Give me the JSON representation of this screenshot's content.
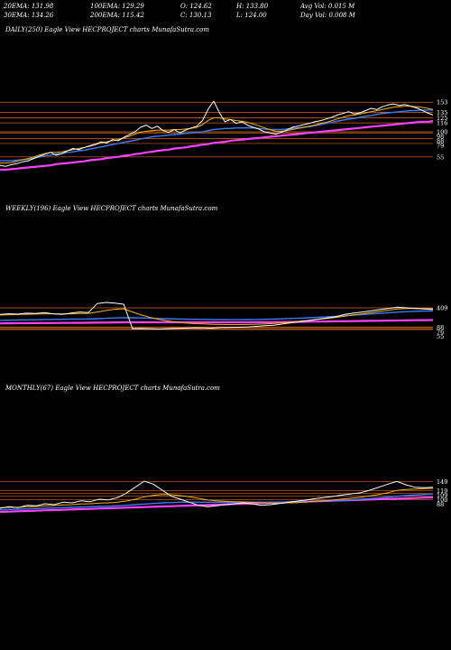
{
  "header": {
    "row1": [
      {
        "label": "20EMA:",
        "value": "131.98"
      },
      {
        "label": "100EMA:",
        "value": "129.29"
      },
      {
        "label": "O:",
        "value": "124.62"
      },
      {
        "label": "H:",
        "value": "133.80"
      },
      {
        "label": "Avg Vol:",
        "value": "0.015 M"
      }
    ],
    "row2": [
      {
        "label": "30EMA:",
        "value": "134.26"
      },
      {
        "label": "200EMA:",
        "value": "115.42"
      },
      {
        "label": "C:",
        "value": "130.13"
      },
      {
        "label": "L:",
        "value": "124.00"
      },
      {
        "label": "Day Vol:",
        "value": "0.008  M"
      }
    ]
  },
  "panels": [
    {
      "title": "DAILY(250) Eagle   View  HECPROJECT charts MunafaSutra.com"
    },
    {
      "title": "WEEKLY(196) Eagle   View  HECPROJECT charts MunafaSutra.com"
    },
    {
      "title": "MONTHLY(67) Eagle   View  HECPROJECT charts MunafaSutra.com"
    }
  ],
  "colors": {
    "background": "#000000",
    "price": "#ffffff",
    "ema_short": "#ffb000",
    "ema_long": "#3a7bff",
    "ema_200": "#ff40ff",
    "level_lines": "#d2691e"
  },
  "chart_data": [
    {
      "type": "line",
      "name": "DAILY(250)",
      "y_tick_labels": [
        "153",
        "135",
        "125",
        "116",
        "100",
        "98",
        "88",
        "79",
        "55"
      ],
      "levels": [
        153,
        135,
        125,
        116,
        100,
        98,
        88,
        79,
        55
      ],
      "price": [
        40,
        38,
        41,
        43,
        46,
        48,
        52,
        56,
        60,
        63,
        58,
        61,
        66,
        70,
        68,
        72,
        75,
        78,
        82,
        80,
        86,
        84,
        90,
        95,
        100,
        108,
        112,
        106,
        110,
        102,
        99,
        104,
        98,
        103,
        107,
        110,
        120,
        140,
        155,
        135,
        118,
        122,
        115,
        118,
        112,
        108,
        105,
        100,
        98,
        96,
        99,
        103,
        108,
        110,
        113,
        115,
        118,
        120,
        123,
        126,
        130,
        133,
        136,
        132,
        134,
        138,
        142,
        140,
        145,
        148,
        150,
        147,
        149,
        146,
        143,
        139,
        134,
        130
      ],
      "ema_short": [
        44,
        44,
        45,
        47,
        50,
        52,
        55,
        58,
        61,
        63,
        63,
        64,
        66,
        68,
        70,
        72,
        74,
        77,
        80,
        82,
        84,
        86,
        89,
        92,
        96,
        99,
        101,
        102,
        103,
        103,
        103,
        104,
        104,
        105,
        106,
        108,
        113,
        120,
        125,
        125,
        123,
        122,
        120,
        119,
        117,
        114,
        111,
        107,
        104,
        101,
        101,
        102,
        104,
        106,
        108,
        110,
        112,
        115,
        117,
        120,
        123,
        126,
        129,
        130,
        132,
        134,
        136,
        138,
        140,
        142,
        144,
        145,
        146,
        146,
        145,
        144,
        142,
        140
      ],
      "ema_long": [
        48,
        48,
        48,
        49,
        50,
        51,
        53,
        55,
        57,
        58,
        60,
        61,
        63,
        64,
        66,
        67,
        69,
        71,
        73,
        75,
        77,
        79,
        81,
        83,
        85,
        87,
        89,
        91,
        92,
        93,
        94,
        95,
        96,
        97,
        98,
        99,
        100,
        102,
        104,
        105,
        106,
        106,
        107,
        107,
        107,
        107,
        106,
        105,
        104,
        104,
        104,
        105,
        106,
        107,
        108,
        109,
        111,
        113,
        115,
        117,
        119,
        121,
        123,
        124,
        126,
        128,
        129,
        131,
        133,
        134,
        135,
        136,
        137,
        138,
        138,
        139,
        139,
        139
      ],
      "ema_200": [
        32,
        32,
        33,
        34,
        35,
        36,
        37,
        38,
        39,
        40,
        42,
        43,
        44,
        45,
        46,
        47,
        49,
        50,
        51,
        53,
        54,
        55,
        57,
        58,
        60,
        61,
        63,
        64,
        66,
        67,
        68,
        70,
        71,
        72,
        74,
        75,
        77,
        78,
        80,
        81,
        82,
        84,
        85,
        86,
        87,
        88,
        89,
        90,
        91,
        92,
        93,
        94,
        95,
        96,
        97,
        98,
        99,
        100,
        101,
        102,
        103,
        104,
        105,
        106,
        107,
        108,
        109,
        110,
        111,
        112,
        113,
        114,
        115,
        116,
        117,
        118,
        118,
        119
      ]
    },
    {
      "type": "line",
      "name": "WEEKLY(196)",
      "y_tick_labels": [
        "409",
        "88",
        "76",
        "55",
        "47"
      ],
      "levels": [
        409,
        88,
        76,
        55,
        47
      ],
      "price": [
        300,
        310,
        305,
        320,
        315,
        330,
        310,
        300,
        320,
        340,
        330,
        480,
        500,
        490,
        470,
        60,
        62,
        58,
        55,
        60,
        65,
        70,
        75,
        72,
        70,
        78,
        80,
        85,
        90,
        100,
        110,
        120,
        140,
        160,
        180,
        200,
        220,
        240,
        260,
        300,
        320,
        340,
        360,
        380,
        400,
        420,
        410,
        400,
        390,
        380
      ],
      "ema_short": [
        290,
        295,
        298,
        302,
        305,
        310,
        310,
        308,
        310,
        315,
        318,
        340,
        365,
        385,
        395,
        340,
        290,
        250,
        215,
        190,
        170,
        155,
        145,
        140,
        135,
        132,
        130,
        130,
        132,
        136,
        142,
        150,
        160,
        172,
        186,
        200,
        216,
        232,
        250,
        270,
        290,
        310,
        330,
        350,
        370,
        390,
        398,
        400,
        398,
        394
      ],
      "ema_long": [
        200,
        202,
        205,
        208,
        210,
        214,
        216,
        218,
        220,
        222,
        224,
        228,
        234,
        240,
        245,
        244,
        240,
        236,
        232,
        228,
        224,
        220,
        218,
        216,
        214,
        213,
        212,
        212,
        213,
        215,
        218,
        222,
        226,
        232,
        238,
        244,
        252,
        260,
        268,
        278,
        288,
        298,
        308,
        318,
        328,
        338,
        346,
        352,
        356,
        358
      ],
      "ema_200": [
        150,
        151,
        152,
        153,
        154,
        155,
        156,
        157,
        158,
        159,
        160,
        162,
        164,
        166,
        168,
        168,
        168,
        168,
        168,
        168,
        168,
        168,
        168,
        168,
        168,
        168,
        168,
        168,
        168,
        169,
        170,
        171,
        172,
        174,
        176,
        178,
        180,
        182,
        184,
        186,
        188,
        190,
        192,
        194,
        196,
        198,
        200,
        202,
        204,
        206
      ]
    },
    {
      "type": "line",
      "name": "MONTHLY(67)",
      "y_tick_labels": [
        "149",
        "119",
        "109",
        "100",
        "88"
      ],
      "levels": [
        149,
        119,
        109,
        100,
        88
      ],
      "price": [
        60,
        65,
        62,
        70,
        68,
        75,
        72,
        80,
        78,
        85,
        82,
        90,
        88,
        95,
        110,
        130,
        150,
        140,
        120,
        100,
        90,
        80,
        70,
        65,
        68,
        72,
        75,
        78,
        74,
        70,
        72,
        76,
        80,
        84,
        88,
        92,
        96,
        100,
        104,
        108,
        112,
        120,
        130,
        140,
        149,
        138,
        130,
        128,
        130
      ],
      "ema_short": [
        62,
        63,
        63,
        65,
        66,
        68,
        69,
        71,
        72,
        74,
        75,
        77,
        78,
        80,
        84,
        90,
        98,
        103,
        106,
        105,
        102,
        98,
        93,
        88,
        85,
        83,
        82,
        81,
        80,
        78,
        77,
        77,
        78,
        79,
        81,
        83,
        85,
        88,
        91,
        94,
        97,
        101,
        106,
        112,
        119,
        122,
        124,
        125,
        126
      ],
      "ema_long": [
        55,
        56,
        57,
        58,
        59,
        60,
        61,
        62,
        63,
        64,
        65,
        66,
        67,
        68,
        70,
        72,
        74,
        76,
        78,
        79,
        80,
        80,
        80,
        80,
        80,
        80,
        80,
        80,
        80,
        80,
        80,
        80,
        80,
        81,
        82,
        83,
        84,
        85,
        86,
        88,
        90,
        92,
        94,
        97,
        100,
        102,
        104,
        106,
        108
      ],
      "ema_200": [
        48,
        49,
        50,
        51,
        52,
        53,
        54,
        55,
        56,
        57,
        58,
        59,
        60,
        61,
        62,
        63,
        64,
        65,
        66,
        67,
        68,
        69,
        70,
        71,
        72,
        73,
        74,
        75,
        76,
        77,
        78,
        79,
        80,
        81,
        82,
        83,
        84,
        85,
        86,
        87,
        88,
        89,
        90,
        91,
        92,
        93,
        94,
        95,
        96
      ]
    }
  ]
}
